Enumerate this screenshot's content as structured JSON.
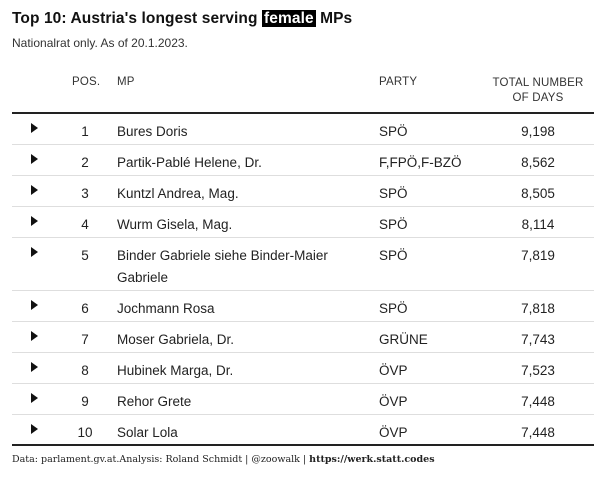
{
  "title": {
    "before": "Top 10: Austria's longest serving ",
    "highlight": "female",
    "after": " MPs"
  },
  "subtitle": "Nationalrat only. As of 20.1.2023.",
  "columns": {
    "pos": "POS.",
    "mp": "MP",
    "party": "PARTY",
    "days_line1": "TOTAL NUMBER",
    "days_line2": "OF DAYS"
  },
  "rows": [
    {
      "pos": "1",
      "mp": "Bures Doris",
      "party": "SPÖ",
      "days": "9,198"
    },
    {
      "pos": "2",
      "mp": "Partik-Pablé Helene, Dr.",
      "party": "F,FPÖ,F-BZÖ",
      "days": "8,562"
    },
    {
      "pos": "3",
      "mp": "Kuntzl Andrea, Mag.",
      "party": "SPÖ",
      "days": "8,505"
    },
    {
      "pos": "4",
      "mp": "Wurm Gisela, Mag.",
      "party": "SPÖ",
      "days": "8,114"
    },
    {
      "pos": "5",
      "mp": "Binder Gabriele siehe Binder-Maier Gabriele",
      "party": "SPÖ",
      "days": "7,819"
    },
    {
      "pos": "6",
      "mp": "Jochmann Rosa",
      "party": "SPÖ",
      "days": "7,818"
    },
    {
      "pos": "7",
      "mp": "Moser Gabriela, Dr.",
      "party": "GRÜNE",
      "days": "7,743"
    },
    {
      "pos": "8",
      "mp": "Hubinek Marga, Dr.",
      "party": "ÖVP",
      "days": "7,523"
    },
    {
      "pos": "9",
      "mp": "Rehor Grete",
      "party": "ÖVP",
      "days": "7,448"
    },
    {
      "pos": "10",
      "mp": "Solar Lola",
      "party": "ÖVP",
      "days": "7,448"
    }
  ],
  "footer": {
    "source": "Data: parlament.gv.at.Analysis: Roland Schmidt | @zoowalk | ",
    "link": "https://werk.statt.codes"
  }
}
